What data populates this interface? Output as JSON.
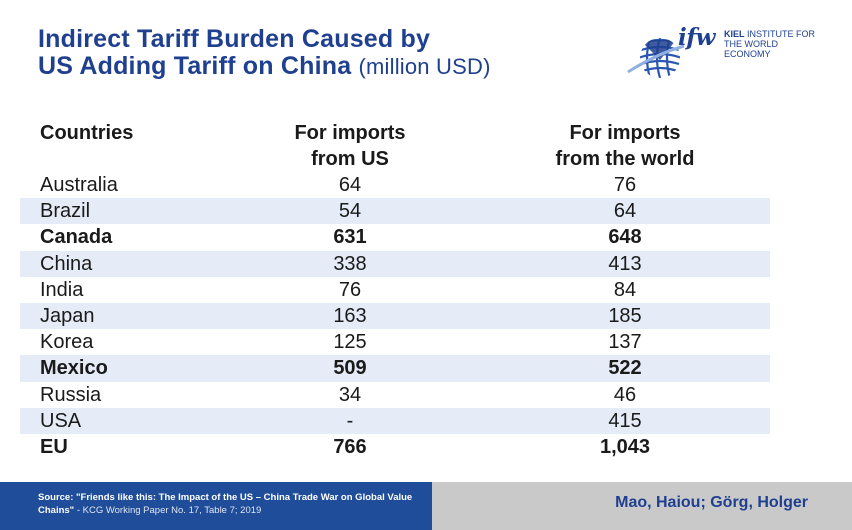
{
  "header": {
    "title_line1": "Indirect Tariff Burden Caused by",
    "title_line2": "US Adding Tariff on China",
    "unit": "(million USD)"
  },
  "logo": {
    "mark": "ifw",
    "institute_line1": "KIEL",
    "institute_line1_rest": "INSTITUTE FOR",
    "institute_line2": "THE WORLD ECONOMY"
  },
  "chart_data": {
    "type": "table",
    "columns": [
      "Countries",
      "For imports\nfrom US",
      "For imports\nfrom the world"
    ],
    "rows": [
      {
        "country": "Australia",
        "from_us": "64",
        "from_world": "76",
        "bold": false
      },
      {
        "country": "Brazil",
        "from_us": "54",
        "from_world": "64",
        "bold": false
      },
      {
        "country": "Canada",
        "from_us": "631",
        "from_world": "648",
        "bold": true
      },
      {
        "country": "China",
        "from_us": "338",
        "from_world": "413",
        "bold": false
      },
      {
        "country": "India",
        "from_us": "76",
        "from_world": "84",
        "bold": false
      },
      {
        "country": "Japan",
        "from_us": "163",
        "from_world": "185",
        "bold": false
      },
      {
        "country": "Korea",
        "from_us": "125",
        "from_world": "137",
        "bold": false
      },
      {
        "country": "Mexico",
        "from_us": "509",
        "from_world": "522",
        "bold": true
      },
      {
        "country": "Russia",
        "from_us": "34",
        "from_world": "46",
        "bold": false
      },
      {
        "country": "USA",
        "from_us": "-",
        "from_world": "415",
        "bold": false
      },
      {
        "country": "EU",
        "from_us": "766",
        "from_world": "1,043",
        "bold": true
      }
    ]
  },
  "footer": {
    "source_bold": "Source: \"Friends like this: The Impact of the US – China Trade War on Global Value Chains\"",
    "source_rest": " - KCG Working Paper No. 17, Table 7; 2019",
    "authors": "Mao, Haiou; Görg, Holger"
  },
  "colors": {
    "brand_blue": "#1f3f8f",
    "footer_blue": "#1f4d99",
    "row_shade": "#e6ecf7",
    "footer_gray": "#c9c9c9"
  }
}
